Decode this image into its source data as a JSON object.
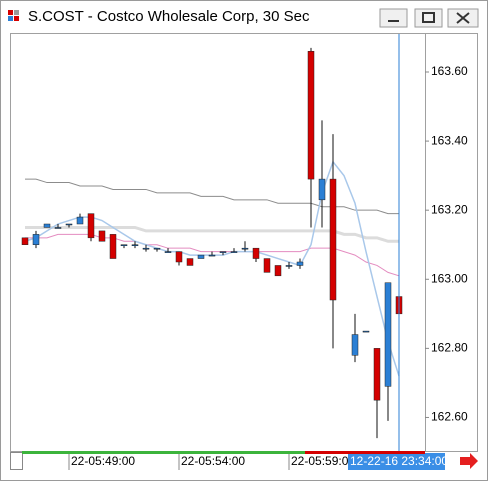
{
  "window_title": "S.COST - Costco Wholesale Corp, 30 Sec",
  "chart_data": {
    "type": "candlestick",
    "categories": [
      null,
      null,
      null,
      null,
      "22-05:49:00",
      null,
      null,
      null,
      null,
      null,
      null,
      null,
      null,
      null,
      "22-05:54:00",
      null,
      null,
      null,
      null,
      null,
      null,
      null,
      null,
      null,
      "22-05:59:00",
      null,
      null,
      null,
      null,
      null,
      null,
      null,
      null,
      null,
      null
    ],
    "open": [
      163.12,
      163.1,
      163.15,
      163.15,
      163.16,
      163.16,
      163.19,
      163.14,
      163.13,
      163.1,
      163.1,
      163.09,
      163.09,
      163.08,
      163.08,
      163.06,
      163.06,
      163.07,
      163.08,
      163.08,
      163.09,
      163.09,
      163.06,
      163.04,
      163.04,
      163.04,
      163.66,
      163.23,
      163.29,
      null,
      162.78,
      162.85,
      162.8,
      162.69,
      162.95
    ],
    "high": [
      163.12,
      163.14,
      163.16,
      163.16,
      163.16,
      163.19,
      163.19,
      163.14,
      163.13,
      163.1,
      163.11,
      163.1,
      163.09,
      163.09,
      163.08,
      163.06,
      163.07,
      163.08,
      163.08,
      163.09,
      163.11,
      163.09,
      163.06,
      163.04,
      163.05,
      163.06,
      163.67,
      163.46,
      163.42,
      null,
      162.9,
      162.85,
      162.8,
      162.99,
      162.95
    ],
    "low": [
      163.1,
      163.09,
      163.15,
      163.15,
      163.15,
      163.16,
      163.11,
      163.11,
      163.06,
      163.09,
      163.09,
      163.08,
      163.08,
      163.08,
      163.04,
      163.04,
      163.06,
      163.07,
      163.07,
      163.08,
      163.08,
      163.05,
      163.02,
      163.01,
      163.03,
      163.03,
      163.15,
      163.15,
      162.8,
      null,
      162.76,
      162.85,
      162.54,
      162.59,
      162.9
    ],
    "close": [
      163.1,
      163.13,
      163.16,
      163.15,
      163.16,
      163.18,
      163.12,
      163.11,
      163.06,
      163.1,
      163.1,
      163.09,
      163.09,
      163.08,
      163.05,
      163.04,
      163.07,
      163.07,
      163.08,
      163.08,
      163.09,
      163.06,
      163.02,
      163.01,
      163.04,
      163.05,
      163.29,
      163.29,
      162.94,
      null,
      162.84,
      162.85,
      162.65,
      162.99,
      162.9
    ],
    "up_color": "#2b7fd4",
    "down_color": "#d40000",
    "series": [
      {
        "color": "#8c8c8c",
        "width": 1,
        "values": [
          163.29,
          163.29,
          163.28,
          163.28,
          163.28,
          163.27,
          163.27,
          163.27,
          163.26,
          163.26,
          163.26,
          163.26,
          163.25,
          163.25,
          163.25,
          163.25,
          163.24,
          163.24,
          163.24,
          163.23,
          163.23,
          163.23,
          163.23,
          163.22,
          163.22,
          163.22,
          163.22,
          163.21,
          163.21,
          163.21,
          163.2,
          163.2,
          163.2,
          163.19,
          163.19
        ]
      },
      {
        "color": "#dcdcdc",
        "width": 3,
        "values": [
          163.15,
          163.15,
          163.15,
          163.15,
          163.15,
          163.15,
          163.15,
          163.15,
          163.15,
          163.15,
          163.15,
          163.14,
          163.14,
          163.14,
          163.14,
          163.14,
          163.14,
          163.14,
          163.14,
          163.14,
          163.14,
          163.14,
          163.14,
          163.14,
          163.14,
          163.14,
          163.14,
          163.14,
          163.14,
          163.13,
          163.13,
          163.12,
          163.12,
          163.11,
          163.11
        ]
      },
      {
        "color": "#e48cc0",
        "width": 1,
        "values": [
          163.12,
          163.12,
          163.12,
          163.13,
          163.13,
          163.13,
          163.13,
          163.12,
          163.12,
          163.11,
          163.11,
          163.1,
          163.1,
          163.09,
          163.09,
          163.09,
          163.08,
          163.08,
          163.08,
          163.08,
          163.08,
          163.08,
          163.08,
          163.08,
          163.08,
          163.08,
          163.09,
          163.09,
          163.09,
          163.08,
          163.07,
          163.05,
          163.04,
          163.02,
          163.01
        ]
      },
      {
        "color": "#a9c8ea",
        "width": 1.5,
        "values": [
          163.11,
          163.12,
          163.14,
          163.16,
          163.17,
          163.18,
          163.18,
          163.17,
          163.15,
          163.13,
          163.11,
          163.1,
          163.09,
          163.08,
          163.08,
          163.07,
          163.07,
          163.07,
          163.07,
          163.08,
          163.08,
          163.08,
          163.07,
          163.06,
          163.05,
          163.04,
          163.1,
          163.25,
          163.34,
          163.3,
          163.22,
          163.08,
          162.95,
          162.82,
          162.72
        ]
      }
    ],
    "ylim": [
      162.5,
      163.71
    ],
    "yticks": [
      {
        "value": 162.6,
        "label": "162.60"
      },
      {
        "value": 162.8,
        "label": "162.80"
      },
      {
        "value": 163.0,
        "label": "163.00"
      },
      {
        "value": 163.2,
        "label": "163.20"
      },
      {
        "value": 163.4,
        "label": "163.40"
      },
      {
        "value": 163.6,
        "label": "163.60"
      }
    ],
    "crosshair_label": "12-22-16 23:34:00"
  }
}
